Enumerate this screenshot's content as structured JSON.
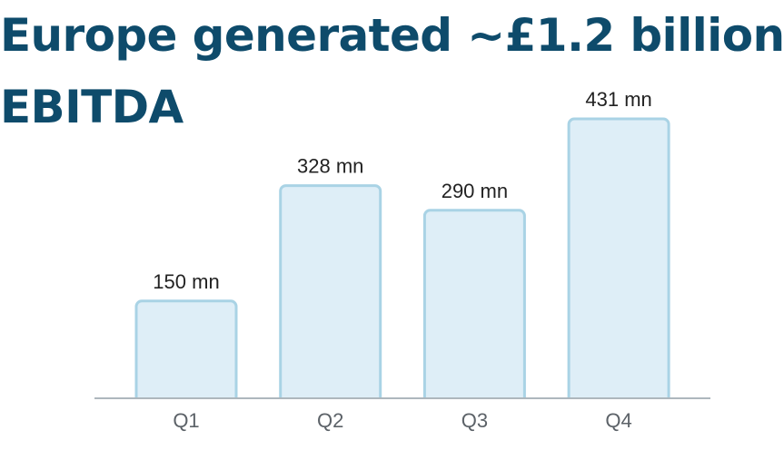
{
  "headline": {
    "line_1": "Europe generated ~£1.2 billion",
    "line_2": "EBITDA"
  },
  "colors": {
    "headline": "#0e4b6b",
    "bar_fill": "#deeef7",
    "bar_stroke": "#a9d3e5",
    "axis": "#aeb7bd",
    "value_label": "#222222",
    "tick_label": "#5c6268"
  },
  "chart_data": {
    "type": "bar",
    "categories": [
      "Q1",
      "Q2",
      "Q3",
      "Q4"
    ],
    "values": [
      150,
      328,
      290,
      431
    ],
    "value_labels": [
      "150 mn",
      "328 mn",
      "290 mn",
      "431 mn"
    ],
    "unit": "mn",
    "ylim": [
      0,
      431
    ],
    "grid": false,
    "legend": "none",
    "title": "",
    "xlabel": "",
    "ylabel": ""
  }
}
